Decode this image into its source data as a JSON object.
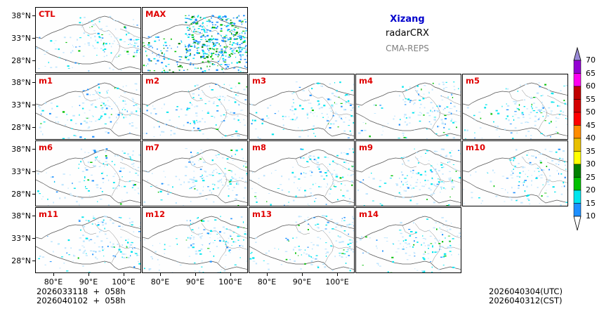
{
  "title": {
    "region": "Xizang",
    "variable": "radarCRX",
    "model": "CMA-REPS"
  },
  "panels": [
    {
      "label": "CTL"
    },
    {
      "label": "MAX"
    },
    {
      "label": "m1"
    },
    {
      "label": "m2"
    },
    {
      "label": "m3"
    },
    {
      "label": "m4"
    },
    {
      "label": "m5"
    },
    {
      "label": "m6"
    },
    {
      "label": "m7"
    },
    {
      "label": "m8"
    },
    {
      "label": "m9"
    },
    {
      "label": "m10"
    },
    {
      "label": "m11"
    },
    {
      "label": "m12"
    },
    {
      "label": "m13"
    },
    {
      "label": "m14"
    }
  ],
  "axes": {
    "lat_labels": [
      "38°N",
      "33°N",
      "28°N"
    ],
    "lon_labels": [
      "80°E",
      "90°E",
      "100°E"
    ]
  },
  "footer": {
    "init_utc": "2026033118  +  058h",
    "init_cst": "2026040102  +  058h",
    "valid_utc": "2026040304(UTC)",
    "valid_cst": "2026040312(CST)"
  },
  "colorbar": {
    "levels": [
      "10",
      "15",
      "20",
      "25",
      "30",
      "35",
      "40",
      "45",
      "50",
      "55",
      "60",
      "65",
      "70"
    ],
    "colors": [
      "#1e90ff",
      "#00e5ee",
      "#00c000",
      "#008000",
      "#ffff00",
      "#e8c000",
      "#ff8c00",
      "#ff0000",
      "#d40000",
      "#c00000",
      "#ff00f0",
      "#9400d3",
      "#9a8ad8"
    ]
  }
}
